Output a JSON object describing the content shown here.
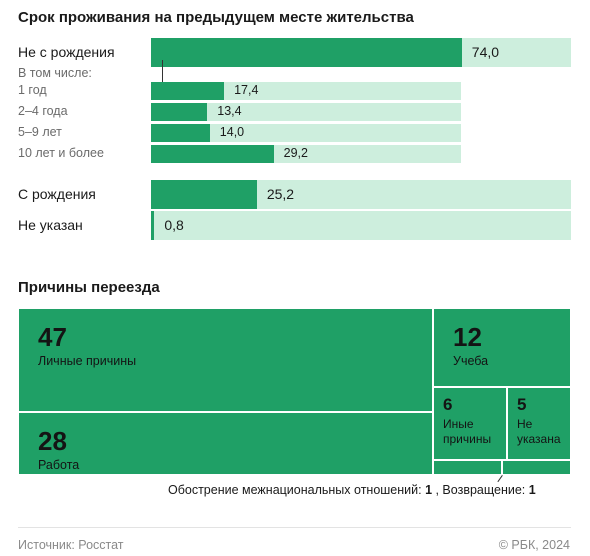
{
  "colors": {
    "bar": "#1fa066",
    "track": "#cdeedd"
  },
  "section1_title": "Срок проживания на предыдущем месте жительства",
  "section2_title": "Причины переезда",
  "chart_data": [
    {
      "type": "bar",
      "orientation": "horizontal",
      "title": "Срок проживания на предыдущем месте жительства",
      "xlim": [
        0,
        100
      ],
      "groups": [
        {
          "label": "Не с рождения",
          "value": 74.0,
          "value_label": "74,0",
          "size": "large"
        },
        {
          "label": "В том числе:",
          "is_header": true
        },
        {
          "label": "1 год",
          "value": 17.4,
          "value_label": "17,4",
          "size": "small",
          "parent": "Не с рождения"
        },
        {
          "label": "2–4 года",
          "value": 13.4,
          "value_label": "13,4",
          "size": "small",
          "parent": "Не с рождения"
        },
        {
          "label": "5–9 лет",
          "value": 14.0,
          "value_label": "14,0",
          "size": "small",
          "parent": "Не с рождения"
        },
        {
          "label": "10 лет и более",
          "value": 29.2,
          "value_label": "29,2",
          "size": "small",
          "parent": "Не с рождения"
        },
        {
          "label": "С рождения",
          "value": 25.2,
          "value_label": "25,2",
          "size": "large"
        },
        {
          "label": "Не указан",
          "value": 0.8,
          "value_label": "0,8",
          "size": "large"
        }
      ]
    },
    {
      "type": "treemap",
      "title": "Причины переезда",
      "items": [
        {
          "label": "Личные причины",
          "value": 47,
          "value_label": "47"
        },
        {
          "label": "Работа",
          "value": 28,
          "value_label": "28"
        },
        {
          "label": "Учеба",
          "value": 12,
          "value_label": "12"
        },
        {
          "label": "Иные причины",
          "value": 6,
          "value_label": "6"
        },
        {
          "label": "Не указана",
          "value": 5,
          "value_label": "5"
        },
        {
          "label": "Обострение межнациональных отношений",
          "value": 1,
          "value_label": "1"
        },
        {
          "label": "Возвращение",
          "value": 1,
          "value_label": "1"
        }
      ],
      "note": {
        "part1": "Обострение межнациональных отношений: ",
        "value1": "1",
        "sep": " , Возвращение: ",
        "value2": "1"
      }
    }
  ],
  "footer": {
    "source": "Источник: Росстат",
    "copyright": "© РБК, 2024"
  }
}
